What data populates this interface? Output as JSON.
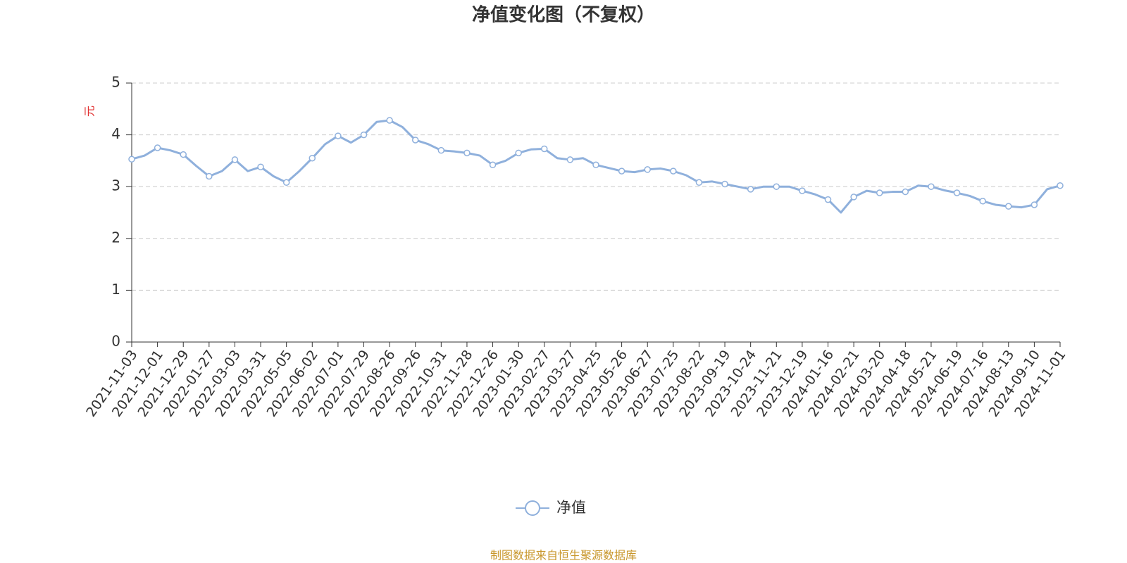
{
  "chart_data": {
    "type": "line",
    "title": "净值变化图（不复权）",
    "y_label": "元",
    "source": "制图数据来自恒生聚源数据库",
    "categories": [
      "2021-11-03",
      null,
      "2021-12-01",
      null,
      "2021-12-29",
      null,
      "2022-01-27",
      null,
      "2022-03-03",
      null,
      "2022-03-31",
      null,
      "2022-05-05",
      null,
      "2022-06-02",
      null,
      "2022-07-01",
      null,
      "2022-07-29",
      null,
      "2022-08-26",
      null,
      "2022-09-26",
      null,
      "2022-10-31",
      null,
      "2022-11-28",
      null,
      "2022-12-26",
      null,
      "2023-01-30",
      null,
      "2023-02-27",
      null,
      "2023-03-27",
      null,
      "2023-04-25",
      null,
      "2023-05-26",
      null,
      "2023-06-27",
      null,
      "2023-07-25",
      null,
      "2023-08-22",
      null,
      "2023-09-19",
      null,
      "2023-10-24",
      null,
      "2023-11-21",
      null,
      "2023-12-19",
      null,
      "2024-01-16",
      null,
      "2024-02-21",
      null,
      "2024-03-20",
      null,
      "2024-04-18",
      null,
      "2024-05-21",
      null,
      "2024-06-19",
      null,
      "2024-07-16",
      null,
      "2024-08-13",
      null,
      "2024-09-10",
      null,
      "2024-11-01"
    ],
    "series": [
      {
        "name": "净值",
        "color": "#8fb0dc",
        "values": [
          3.53,
          3.6,
          3.75,
          3.7,
          3.62,
          3.4,
          3.2,
          3.3,
          3.52,
          3.3,
          3.38,
          3.2,
          3.08,
          3.3,
          3.55,
          3.82,
          3.98,
          3.85,
          4.0,
          4.25,
          4.28,
          4.15,
          3.9,
          3.82,
          3.7,
          3.68,
          3.65,
          3.6,
          3.42,
          3.5,
          3.65,
          3.72,
          3.73,
          3.55,
          3.52,
          3.55,
          3.42,
          3.36,
          3.3,
          3.28,
          3.33,
          3.35,
          3.3,
          3.22,
          3.08,
          3.1,
          3.05,
          3.0,
          2.95,
          3.0,
          3.0,
          3.0,
          2.92,
          2.85,
          2.75,
          2.5,
          2.8,
          2.92,
          2.88,
          2.9,
          2.9,
          3.02,
          3.0,
          2.93,
          2.88,
          2.82,
          2.72,
          2.65,
          2.62,
          2.6,
          2.65,
          2.95,
          3.02
        ]
      }
    ],
    "ylim": [
      0,
      5
    ],
    "yticks": [
      0,
      1,
      2,
      3,
      4,
      5
    ],
    "grid": true,
    "legend": "bottom"
  }
}
